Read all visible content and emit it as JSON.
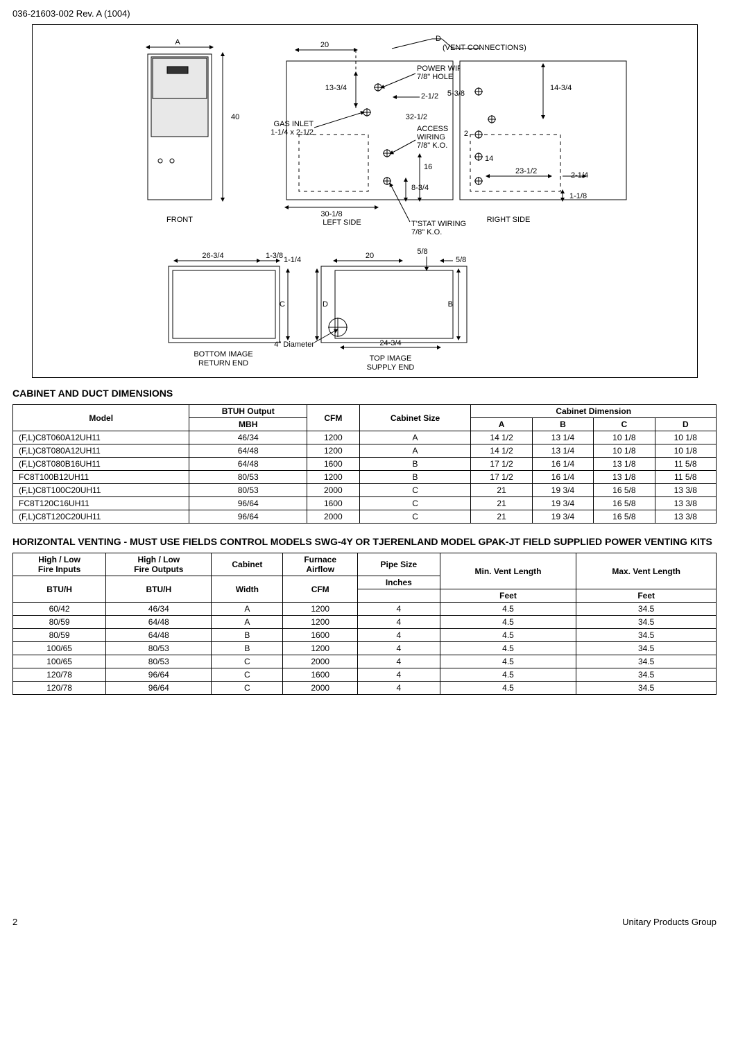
{
  "doc": {
    "header": "036-21603-002 Rev. A (1004)",
    "page": "2",
    "footer_right": "Unitary Products Group"
  },
  "diagram": {
    "front_label": "FRONT",
    "left_label": "LEFT SIDE",
    "right_label": "RIGHT SIDE",
    "bottom_label": "BOTTOM IMAGE",
    "bottom_sub": "RETURN END",
    "top_label": "TOP IMAGE",
    "top_sub": "SUPPLY END",
    "A": "A",
    "B": "B",
    "C": "C",
    "D": "D",
    "D2": "D",
    "dim_40": "40",
    "dim_20": "20",
    "dim_20b": "20",
    "dim_26_34": "26-3/4",
    "dim_30_18": "30-1/8",
    "dim_13_34": "13-3/4",
    "dim_24_34": "24-3/4",
    "dim_14_34": "14-3/4",
    "dim_23_12": "23-1/2",
    "dim_2_14": "2-1/4",
    "dim_1_18": "1-1/8",
    "dim_5_38": "5-3/8",
    "dim_32_12": "32-1/2",
    "dim_2_12": "2-1/2",
    "dim_8_34": "8-3/4",
    "dim_16": "16",
    "dim_14": "14",
    "dim_2": "2",
    "dim_1_38": "1-3/8",
    "dim_1_14": "1-1/4",
    "dim_58": "5/8",
    "dim_58b": "5/8",
    "dim_4dia": "4\" Diameter",
    "gas_inlet1": "GAS INLET",
    "gas_inlet2": "1-1/4 x 2-1/2",
    "vent_conn": "(VENT CONNECTIONS)",
    "power1": "POWER WIRING",
    "power2": "7/8\" HOLE",
    "access1": "ACCESS",
    "access2": "WIRING",
    "access3": "7/8\" K.O.",
    "tstat1": "T'STAT WIRING",
    "tstat2": "7/8\" K.O."
  },
  "cabinet_section": {
    "title": "CABINET AND DUCT DIMENSIONS",
    "header": {
      "model": "Model",
      "btuh": "BTUH Output",
      "mbh": "MBH",
      "cfm": "CFM",
      "cabsize": "Cabinet Size",
      "cabdim": "Cabinet Dimension",
      "A": "A",
      "B": "B",
      "C": "C",
      "D": "D"
    },
    "rows": [
      {
        "model": "(F,L)C8T060A12UH11",
        "mbh": "46/34",
        "cfm": "1200",
        "size": "A",
        "A": "14 1/2",
        "B": "13 1/4",
        "C": "10 1/8",
        "D": "10 1/8"
      },
      {
        "model": "(F,L)C8T080A12UH11",
        "mbh": "64/48",
        "cfm": "1200",
        "size": "A",
        "A": "14 1/2",
        "B": "13 1/4",
        "C": "10 1/8",
        "D": "10 1/8"
      },
      {
        "model": "(F,L)C8T080B16UH11",
        "mbh": "64/48",
        "cfm": "1600",
        "size": "B",
        "A": "17 1/2",
        "B": "16 1/4",
        "C": "13 1/8",
        "D": "11 5/8"
      },
      {
        "model": "FC8T100B12UH11",
        "mbh": "80/53",
        "cfm": "1200",
        "size": "B",
        "A": "17 1/2",
        "B": "16 1/4",
        "C": "13 1/8",
        "D": "11 5/8"
      },
      {
        "model": "(F,L)C8T100C20UH11",
        "mbh": "80/53",
        "cfm": "2000",
        "size": "C",
        "A": "21",
        "B": "19 3/4",
        "C": "16 5/8",
        "D": "13 3/8"
      },
      {
        "model": "FC8T120C16UH11",
        "mbh": "96/64",
        "cfm": "1600",
        "size": "C",
        "A": "21",
        "B": "19 3/4",
        "C": "16 5/8",
        "D": "13 3/8"
      },
      {
        "model": "(F,L)C8T120C20UH11",
        "mbh": "96/64",
        "cfm": "2000",
        "size": "C",
        "A": "21",
        "B": "19 3/4",
        "C": "16 5/8",
        "D": "13 3/8"
      }
    ]
  },
  "vent_section": {
    "title": "HORIZONTAL VENTING - MUST USE FIELDS CONTROL MODELS SWG-4Y OR TJERENLAND MODEL GPAK-JT FIELD SUPPLIED POWER VENTING KITS",
    "header": {
      "hilo_in": "High / Low\nFire Inputs",
      "hilo_out": "High / Low\nFire Outputs",
      "cabinet": "Cabinet",
      "airflow": "Furnace\nAirflow",
      "pipesize": "Pipe Size",
      "inches": "Inches",
      "minvent": "Min. Vent Length",
      "maxvent": "Max. Vent Length",
      "btuh": "BTU/H",
      "width": "Width",
      "cfm": "CFM",
      "feet": "Feet"
    },
    "rows": [
      {
        "in": "60/42",
        "out": "46/34",
        "cab": "A",
        "cfm": "1200",
        "pipe": "4",
        "min": "4.5",
        "max": "34.5"
      },
      {
        "in": "80/59",
        "out": "64/48",
        "cab": "A",
        "cfm": "1200",
        "pipe": "4",
        "min": "4.5",
        "max": "34.5"
      },
      {
        "in": "80/59",
        "out": "64/48",
        "cab": "B",
        "cfm": "1600",
        "pipe": "4",
        "min": "4.5",
        "max": "34.5"
      },
      {
        "in": "100/65",
        "out": "80/53",
        "cab": "B",
        "cfm": "1200",
        "pipe": "4",
        "min": "4.5",
        "max": "34.5"
      },
      {
        "in": "100/65",
        "out": "80/53",
        "cab": "C",
        "cfm": "2000",
        "pipe": "4",
        "min": "4.5",
        "max": "34.5"
      },
      {
        "in": "120/78",
        "out": "96/64",
        "cab": "C",
        "cfm": "1600",
        "pipe": "4",
        "min": "4.5",
        "max": "34.5"
      },
      {
        "in": "120/78",
        "out": "96/64",
        "cab": "C",
        "cfm": "2000",
        "pipe": "4",
        "min": "4.5",
        "max": "34.5"
      }
    ]
  },
  "colors": {
    "stroke": "#000000",
    "fill_white": "#ffffff",
    "fill_gray": "#d0d0d0"
  }
}
